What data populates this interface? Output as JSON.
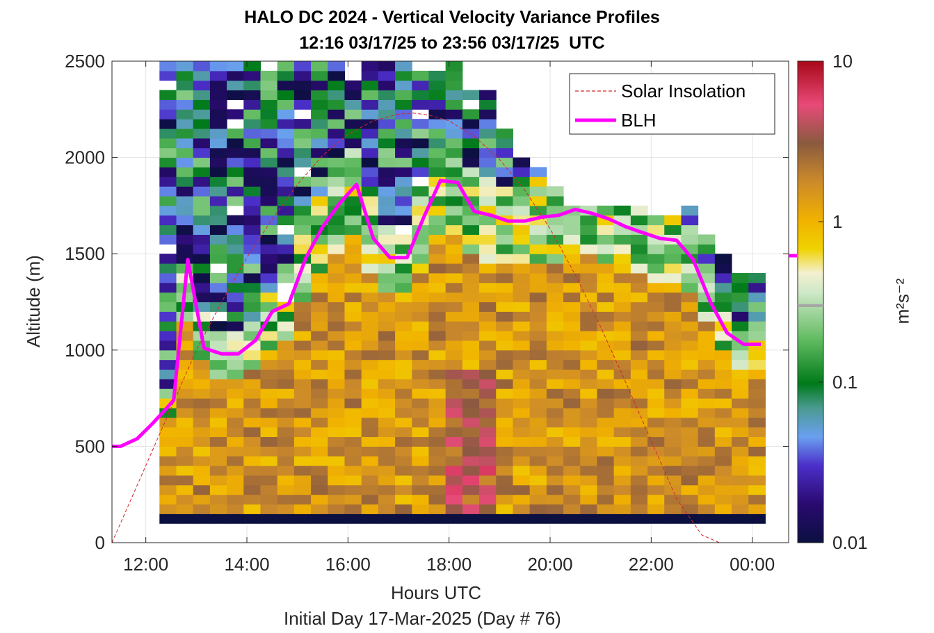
{
  "chart_data": {
    "type": "heatmap",
    "title": "HALO DC 2024 - Vertical Velocity Variance Profiles",
    "subtitle": "12:16 03/17/25 to 23:56 03/17/25  UTC",
    "xlabel": "Hours UTC",
    "xlabel2": "Initial Day 17-Mar-2025 (Day # 76)",
    "ylabel": "Altitude (m)",
    "xlim": [
      11.33,
      24.72
    ],
    "ylim": [
      0,
      2500
    ],
    "x_ticks": [
      12,
      14,
      16,
      18,
      20,
      22,
      24
    ],
    "x_tick_labels": [
      "12:00",
      "14:00",
      "16:00",
      "18:00",
      "20:00",
      "22:00",
      "00:00"
    ],
    "y_ticks": [
      0,
      500,
      1000,
      1500,
      2000,
      2500
    ],
    "y_tick_labels": [
      "0",
      "500",
      "1000",
      "1500",
      "2000",
      "2500"
    ],
    "grid": true,
    "legend_position": "top-right",
    "colorbar": {
      "label": "m²s⁻²",
      "scale": "log",
      "range": [
        0.01,
        10
      ],
      "tick_values": [
        0.01,
        0.1,
        1,
        10
      ],
      "tick_labels": [
        "0.01",
        "0.1",
        "1",
        "10"
      ],
      "marker_value": 0.3
    },
    "heatmap": {
      "time_start": 12.27,
      "time_step": 0.333,
      "num_columns": 36,
      "alt_start": 100,
      "alt_step": 50,
      "column_top_altitudes": [
        2500,
        2500,
        2500,
        2500,
        2500,
        2500,
        2500,
        2500,
        2500,
        2500,
        2500,
        2400,
        2500,
        2500,
        2500,
        2450,
        2450,
        2500,
        2350,
        2350,
        2150,
        2000,
        1950,
        1850,
        1750,
        1750,
        1750,
        1750,
        1750,
        1700,
        1700,
        1750,
        1600,
        1500,
        1400,
        1400
      ],
      "lowest_gate_value": 0.01,
      "note_values": "variance values are log-scaled m2/s2 rendered per gate"
    },
    "series": [
      {
        "name": "Solar Insolation",
        "style": "dashed",
        "color": "#d62728",
        "x": [
          11.33,
          12.0,
          12.5,
          13.0,
          13.5,
          14.0,
          14.5,
          15.0,
          15.5,
          16.0,
          16.5,
          17.0,
          17.3,
          17.6,
          18.0,
          18.5,
          19.0,
          19.5,
          20.0,
          20.5,
          21.0,
          21.5,
          22.0,
          22.5,
          23.0,
          23.35,
          24.72
        ],
        "y": [
          0,
          400,
          700,
          1000,
          1250,
          1480,
          1680,
          1860,
          2010,
          2120,
          2190,
          2225,
          2230,
          2220,
          2190,
          2110,
          1990,
          1830,
          1630,
          1390,
          1120,
          830,
          530,
          230,
          40,
          0,
          0
        ]
      },
      {
        "name": "BLH",
        "style": "solid",
        "color": "#ff00ff",
        "x": [
          11.33,
          11.5,
          11.83,
          12.1,
          12.35,
          12.55,
          12.83,
          13.15,
          13.5,
          13.83,
          14.17,
          14.5,
          14.83,
          15.17,
          15.5,
          15.83,
          16.17,
          16.5,
          16.83,
          17.17,
          17.5,
          17.83,
          18.17,
          18.5,
          18.83,
          19.17,
          19.5,
          19.83,
          20.17,
          20.5,
          20.83,
          21.17,
          21.5,
          21.83,
          22.17,
          22.5,
          22.83,
          23.17,
          23.5,
          23.83,
          24.17
        ],
        "y": [
          500,
          500,
          540,
          610,
          680,
          740,
          1470,
          1010,
          980,
          980,
          1050,
          1200,
          1240,
          1480,
          1640,
          1760,
          1860,
          1580,
          1480,
          1480,
          1690,
          1880,
          1870,
          1720,
          1700,
          1670,
          1670,
          1690,
          1700,
          1730,
          1710,
          1680,
          1640,
          1610,
          1580,
          1570,
          1470,
          1250,
          1090,
          1030,
          1030
        ]
      }
    ],
    "right_edge_marker": {
      "y": 1490,
      "color": "#ff00ff"
    }
  }
}
